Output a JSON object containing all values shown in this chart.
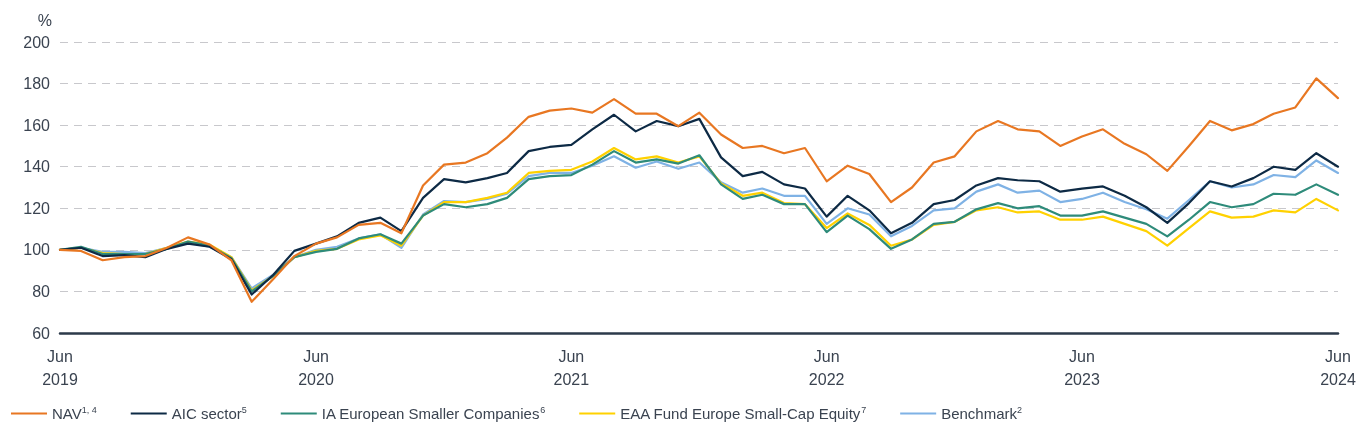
{
  "chart_data": {
    "type": "line",
    "ylabel": "%",
    "x": [
      "2019-06",
      "2019-07",
      "2019-08",
      "2019-09",
      "2019-10",
      "2019-11",
      "2019-12",
      "2020-01",
      "2020-02",
      "2020-03",
      "2020-04",
      "2020-05",
      "2020-06",
      "2020-07",
      "2020-08",
      "2020-09",
      "2020-10",
      "2020-11",
      "2020-12",
      "2021-01",
      "2021-02",
      "2021-03",
      "2021-04",
      "2021-05",
      "2021-06",
      "2021-07",
      "2021-08",
      "2021-09",
      "2021-10",
      "2021-11",
      "2021-12",
      "2022-01",
      "2022-02",
      "2022-03",
      "2022-04",
      "2022-05",
      "2022-06",
      "2022-07",
      "2022-08",
      "2022-09",
      "2022-10",
      "2022-11",
      "2022-12",
      "2023-01",
      "2023-02",
      "2023-03",
      "2023-04",
      "2023-05",
      "2023-06",
      "2023-07",
      "2023-08",
      "2023-09",
      "2023-10",
      "2023-11",
      "2023-12",
      "2024-01",
      "2024-02",
      "2024-03",
      "2024-04",
      "2024-05",
      "2024-06"
    ],
    "series": [
      {
        "name": "NAV$^{1, 4}$",
        "color": "#e87722",
        "values": [
          100,
          99.5,
          95,
          96.5,
          97,
          101,
          106,
          102.5,
          95,
          75,
          86,
          97,
          103,
          106,
          112,
          113,
          108,
          131,
          141,
          142,
          146.5,
          154,
          164,
          167,
          168,
          166,
          172.5,
          165.5,
          165.5,
          159.5,
          166,
          155.5,
          149,
          150,
          146.5,
          149,
          133,
          140.5,
          136.5,
          123,
          130,
          142,
          145,
          157,
          162,
          158,
          157,
          150,
          154.5,
          158,
          151,
          146,
          138,
          150,
          162,
          157.5,
          160.5,
          165.5,
          168.5,
          182.5,
          173
        ]
      },
      {
        "name": "AIC sector$^{5}$",
        "color": "#0d2a45",
        "values": [
          100,
          101,
          97,
          97.5,
          96.5,
          100.5,
          103,
          101.5,
          95.5,
          78.5,
          88,
          99.5,
          103,
          106.5,
          113,
          115.5,
          109,
          125,
          134,
          132.5,
          134.5,
          137,
          147.5,
          149.5,
          150.5,
          158,
          165,
          157,
          162,
          159.5,
          163,
          144.5,
          135.5,
          137.5,
          131.5,
          129.5,
          116,
          126,
          119,
          108,
          113,
          122,
          124,
          131,
          134.5,
          133.5,
          133,
          128,
          129.5,
          130.5,
          126,
          120.5,
          113,
          122.5,
          133,
          130.5,
          134.5,
          140,
          138.5,
          146.5,
          140
        ]
      },
      {
        "name": "IA European Smaller Companies$^{6}$",
        "color": "#2e8b7a",
        "values": [
          100,
          101.5,
          98,
          98,
          98,
          100.5,
          104,
          102,
          96,
          80,
          87.5,
          96.5,
          99,
          100.5,
          105.5,
          107.5,
          103,
          116.5,
          122,
          120.5,
          122,
          125,
          134,
          135.5,
          136,
          141,
          147.5,
          142,
          143.5,
          141.5,
          145.5,
          131.5,
          124.5,
          126.5,
          122,
          122,
          108.5,
          116.5,
          110,
          100.5,
          105,
          112.5,
          113.5,
          119.5,
          122.5,
          120,
          121,
          116.5,
          116.5,
          118.5,
          115.5,
          112.5,
          106.5,
          114.5,
          123,
          120.5,
          122,
          127,
          126.5,
          131.5,
          126.5
        ]
      },
      {
        "name": "EAA Fund Europe Small-Cap Equity$^{7}$",
        "color": "#ffd100",
        "values": [
          100,
          101,
          98.5,
          98,
          98,
          101,
          104,
          102.5,
          96.5,
          80.5,
          87.5,
          96.5,
          99.5,
          100.5,
          105,
          107,
          102,
          116.5,
          123,
          123,
          125,
          127.5,
          137,
          138,
          138.5,
          142.5,
          149,
          143.5,
          145,
          142,
          145,
          132,
          126,
          127.5,
          122.5,
          122,
          110.5,
          117.5,
          112,
          102,
          105,
          112,
          113.5,
          119,
          120.5,
          118,
          118.5,
          114.5,
          114.5,
          116,
          112.5,
          109,
          102,
          110.5,
          118.5,
          115.5,
          116,
          119,
          118,
          124.5,
          119
        ]
      },
      {
        "name": "Benchmark$^{2}$",
        "color": "#7fb2e5",
        "values": [
          100,
          101,
          99,
          99,
          98.5,
          101,
          103.5,
          101.5,
          96.5,
          81.5,
          88,
          96.5,
          100,
          101.5,
          105.5,
          107.5,
          101,
          117,
          123.5,
          123,
          124.5,
          127,
          135.5,
          137,
          137,
          140.5,
          145,
          139.5,
          142.5,
          139,
          142,
          132.5,
          127.5,
          129.5,
          126,
          126,
          112.5,
          120,
          117,
          106.5,
          111.5,
          119,
          120,
          128,
          131.5,
          127.5,
          128.5,
          123,
          124.5,
          127.5,
          123,
          119.5,
          115,
          124,
          133,
          130,
          131.5,
          136,
          135,
          143,
          137
        ]
      }
    ],
    "xlim": [
      "2019-06",
      "2024-06"
    ],
    "xticks": [
      {
        "value": "2019-06",
        "label": "Jun\n2019"
      },
      {
        "value": "2020-06",
        "label": "Jun\n2020"
      },
      {
        "value": "2021-06",
        "label": "Jun\n2021"
      },
      {
        "value": "2022-06",
        "label": "Jun\n2022"
      },
      {
        "value": "2023-06",
        "label": "Jun\n2023"
      },
      {
        "value": "2024-06",
        "label": "Jun\n2024"
      }
    ],
    "ylim": [
      60,
      200
    ],
    "yticks": [
      60,
      80,
      100,
      120,
      140,
      160,
      180,
      200
    ],
    "grid": "y",
    "legend": "bottom",
    "marker": "none",
    "line_style": "solid"
  }
}
